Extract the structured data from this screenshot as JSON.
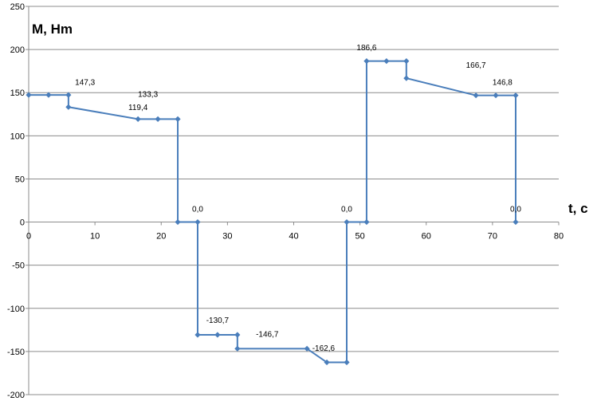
{
  "chart_data": {
    "type": "line",
    "xlabel": "t, c",
    "ylabel": "M, Hm",
    "xlim": [
      0,
      80
    ],
    "ylim": [
      -200,
      250
    ],
    "x_ticks": [
      0,
      10,
      20,
      30,
      40,
      50,
      60,
      70,
      80
    ],
    "y_ticks": [
      250,
      200,
      150,
      100,
      50,
      0,
      -50,
      -100,
      -150,
      -200
    ],
    "grid": {
      "horizontal": true,
      "vertical": false
    },
    "legend": "none",
    "colors": {
      "line": "#4a7ebb",
      "grid": "#8c8c8c"
    },
    "series": [
      {
        "x": [
          0,
          3,
          6,
          6,
          16.5,
          19.5,
          22.5,
          22.5,
          25.5,
          25.5,
          28.5,
          31.5,
          31.5,
          42,
          45,
          48,
          48,
          51,
          51,
          54,
          57,
          57,
          67.5,
          70.5,
          73.5,
          73.5
        ],
        "y": [
          147.3,
          147.3,
          147.3,
          133.3,
          119.4,
          119.4,
          119.4,
          0,
          0,
          -130.7,
          -130.7,
          -130.7,
          -146.7,
          -146.7,
          -162.6,
          -162.6,
          0,
          0,
          186.6,
          186.6,
          186.6,
          166.7,
          146.8,
          146.8,
          146.8,
          0
        ]
      }
    ],
    "annotations": [
      {
        "text": "147,3",
        "x": 8.5,
        "y": 159
      },
      {
        "text": "133,3",
        "x": 18.0,
        "y": 145
      },
      {
        "text": "119,4",
        "x": 16.5,
        "y": 130
      },
      {
        "text": "0,0",
        "x": 25.5,
        "y": 12
      },
      {
        "text": "-130,7",
        "x": 28.5,
        "y": -117
      },
      {
        "text": "-146,7",
        "x": 36.0,
        "y": -133
      },
      {
        "text": "-162,6",
        "x": 44.5,
        "y": -149
      },
      {
        "text": "0,0",
        "x": 48.0,
        "y": 12
      },
      {
        "text": "186,6",
        "x": 51.0,
        "y": 199
      },
      {
        "text": "166,7",
        "x": 67.5,
        "y": 179
      },
      {
        "text": "146,8",
        "x": 71.5,
        "y": 159
      },
      {
        "text": "0,0",
        "x": 73.5,
        "y": 12
      }
    ]
  }
}
